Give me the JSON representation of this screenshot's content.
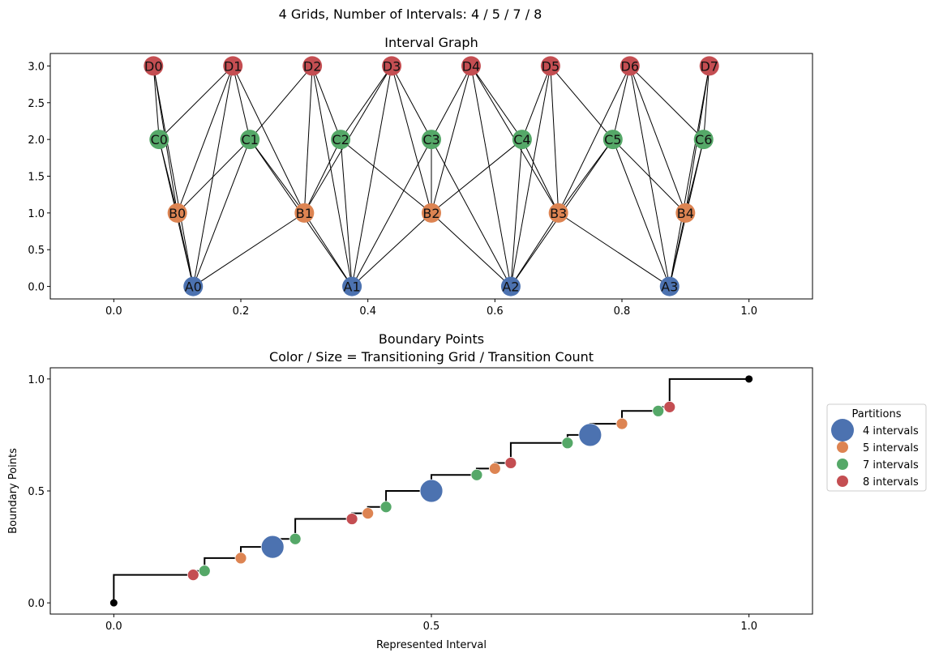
{
  "figure": {
    "suptitle": "4 Grids, Number of Intervals: 4 / 5 / 7 / 8"
  },
  "colors": {
    "A": "#4c72b0",
    "B": "#dd8452",
    "C": "#55a868",
    "D": "#c44e52",
    "edge": "#000000",
    "step": "#000000"
  },
  "chart_data": [
    {
      "type": "scatter",
      "subtype": "network-graph",
      "title": "Interval Graph",
      "xlim": [
        -0.1,
        1.1
      ],
      "ylim": [
        -0.17,
        3.17
      ],
      "xticks": [
        "0.0",
        "0.2",
        "0.4",
        "0.6",
        "0.8",
        "1.0"
      ],
      "xtick_values": [
        0,
        0.2,
        0.4,
        0.6,
        0.8,
        1.0
      ],
      "yticks": [
        "0.0",
        "0.5",
        "1.0",
        "1.5",
        "2.0",
        "2.5",
        "3.0"
      ],
      "ytick_values": [
        0,
        0.5,
        1.0,
        1.5,
        2.0,
        2.5,
        3.0
      ],
      "rows": [
        {
          "group": "A",
          "level": 0,
          "intervals": 4,
          "labels": [
            "A0",
            "A1",
            "A2",
            "A3"
          ]
        },
        {
          "group": "B",
          "level": 1,
          "intervals": 5,
          "labels": [
            "B0",
            "B1",
            "B2",
            "B3",
            "B4"
          ]
        },
        {
          "group": "C",
          "level": 2,
          "intervals": 7,
          "labels": [
            "C0",
            "C1",
            "C2",
            "C3",
            "C4",
            "C5",
            "C6"
          ]
        },
        {
          "group": "D",
          "level": 3,
          "intervals": 8,
          "labels": [
            "D0",
            "D1",
            "D2",
            "D3",
            "D4",
            "D5",
            "D6",
            "D7"
          ]
        }
      ],
      "edge_rule": "overlapping intervals between different rows"
    },
    {
      "type": "scatter",
      "subtype": "step-with-points",
      "title": "Boundary Points",
      "subtitle": "Color / Size = Transitioning Grid / Transition Count",
      "xlabel": "Represented Interval",
      "ylabel": "Boundary Points",
      "xlim": [
        -0.1,
        1.1
      ],
      "ylim": [
        -0.05,
        1.05
      ],
      "xticks": [
        "0.0",
        "0.5",
        "1.0"
      ],
      "xtick_values": [
        0,
        0.5,
        1.0
      ],
      "yticks": [
        "0.0",
        "0.5",
        "1.0"
      ],
      "ytick_values": [
        0,
        0.5,
        1.0
      ],
      "legend": {
        "title": "Partitions",
        "placement": "outside right",
        "entries": [
          {
            "label": "4 intervals",
            "group": "A"
          },
          {
            "label": "5 intervals",
            "group": "B"
          },
          {
            "label": "7 intervals",
            "group": "C"
          },
          {
            "label": "8 intervals",
            "group": "D"
          }
        ]
      },
      "endpoints": [
        [
          0,
          0
        ],
        [
          1,
          1
        ]
      ],
      "points": [
        {
          "x": 0.125,
          "y": 0.125,
          "group": "D",
          "count": 1
        },
        {
          "x": 0.1429,
          "y": 0.1429,
          "group": "C",
          "count": 1
        },
        {
          "x": 0.2,
          "y": 0.2,
          "group": "B",
          "count": 1
        },
        {
          "x": 0.25,
          "y": 0.25,
          "group": "A",
          "count": 3
        },
        {
          "x": 0.2857,
          "y": 0.2857,
          "group": "C",
          "count": 1
        },
        {
          "x": 0.375,
          "y": 0.375,
          "group": "D",
          "count": 1
        },
        {
          "x": 0.4,
          "y": 0.4,
          "group": "B",
          "count": 1
        },
        {
          "x": 0.4286,
          "y": 0.4286,
          "group": "C",
          "count": 1
        },
        {
          "x": 0.5,
          "y": 0.5,
          "group": "A",
          "count": 3
        },
        {
          "x": 0.5714,
          "y": 0.5714,
          "group": "C",
          "count": 1
        },
        {
          "x": 0.6,
          "y": 0.6,
          "group": "B",
          "count": 1
        },
        {
          "x": 0.625,
          "y": 0.625,
          "group": "D",
          "count": 1
        },
        {
          "x": 0.7143,
          "y": 0.7143,
          "group": "C",
          "count": 1
        },
        {
          "x": 0.75,
          "y": 0.75,
          "group": "A",
          "count": 3
        },
        {
          "x": 0.8,
          "y": 0.8,
          "group": "B",
          "count": 1
        },
        {
          "x": 0.8571,
          "y": 0.8571,
          "group": "C",
          "count": 1
        },
        {
          "x": 0.875,
          "y": 0.875,
          "group": "D",
          "count": 1
        }
      ]
    }
  ]
}
